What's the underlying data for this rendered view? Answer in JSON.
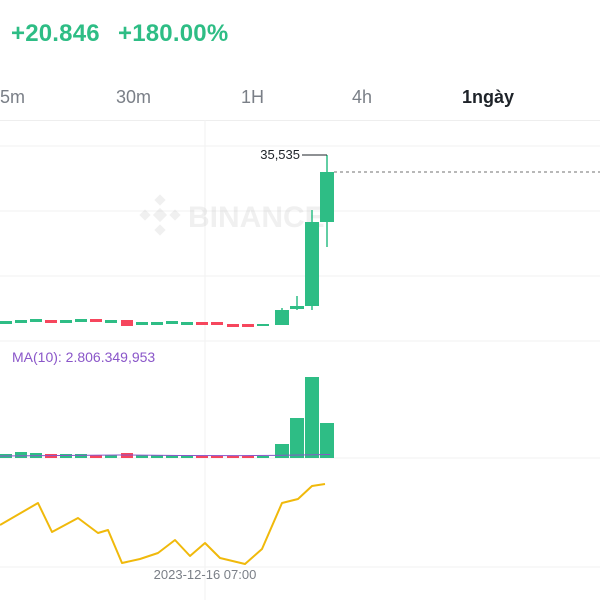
{
  "header": {
    "change_abs": "+20.846",
    "change_pct": "+180.00%",
    "colors": {
      "up": "#2ebd85",
      "down": "#f6465d"
    }
  },
  "tabs": [
    {
      "label": "5m",
      "active": false
    },
    {
      "label": "30m",
      "active": false
    },
    {
      "label": "1H",
      "active": false
    },
    {
      "label": "4h",
      "active": false
    },
    {
      "label": "1ngày",
      "active": true
    }
  ],
  "chart": {
    "watermark": "BINANCE",
    "high_label": "35,535",
    "volume_ma_label": "MA(10): 2.806.349,953",
    "crosshair_time": "2023-12-16 07:00",
    "colors": {
      "indicator_line": "#f0b90b",
      "ma_line": "#8a56c9"
    }
  }
}
